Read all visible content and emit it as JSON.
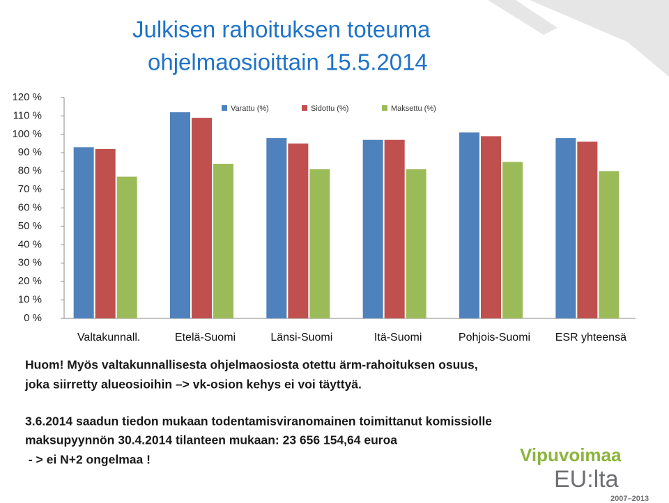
{
  "title": [
    "Julkisen rahoituksen toteuma",
    "ohjelmaosioittain 15.5.2014"
  ],
  "chart_data": {
    "type": "bar",
    "categories": [
      "Valtakunnall.",
      "Etelä-Suomi",
      "Länsi-Suomi",
      "Itä-Suomi",
      "Pohjois-Suomi",
      "ESR yhteensä"
    ],
    "series": [
      {
        "name": "Varattu (%)",
        "color": "#4f81bd",
        "values": [
          93,
          112,
          98,
          97,
          101,
          98
        ]
      },
      {
        "name": "Sidottu (%)",
        "color": "#c0504d",
        "values": [
          92,
          109,
          95,
          97,
          99,
          96
        ]
      },
      {
        "name": "Maksettu (%)",
        "color": "#9bbb59",
        "values": [
          77,
          84,
          81,
          81,
          85,
          80
        ]
      }
    ],
    "ylim": [
      0,
      120
    ],
    "yticks": [
      {
        "value": 0,
        "label": "0 %"
      },
      {
        "value": 10,
        "label": "10 %"
      },
      {
        "value": 20,
        "label": "20 %"
      },
      {
        "value": 30,
        "label": "30 %"
      },
      {
        "value": 40,
        "label": "40 %"
      },
      {
        "value": 50,
        "label": "50 %"
      },
      {
        "value": 60,
        "label": "60 %"
      },
      {
        "value": 70,
        "label": "70 %"
      },
      {
        "value": 80,
        "label": "80 %"
      },
      {
        "value": 90,
        "label": "90 %"
      },
      {
        "value": 100,
        "label": "100 %"
      },
      {
        "value": 110,
        "label": "110 %"
      },
      {
        "value": 120,
        "label": "120 %"
      }
    ],
    "grid": false,
    "legend": "top"
  },
  "notes": [
    "Huom! Myös valtakunnallisesta ohjelmaosiosta otettu ärm-rahoituksen osuus,",
    "joka siirretty alueosioihin –> vk-osion kehys ei voi täyttyä.",
    "3.6.2014 saadun tiedon mukaan todentamisviranomainen toimittanut komissiolle",
    "maksupyynnön 30.4.2014 tilanteen mukaan: 23 656 154,64 euroa",
    " - > ei N+2 ongelmaa !"
  ],
  "logo": {
    "name": "Vipuvoimaa",
    "sub": "EU:lta",
    "years": "2007–2013"
  }
}
